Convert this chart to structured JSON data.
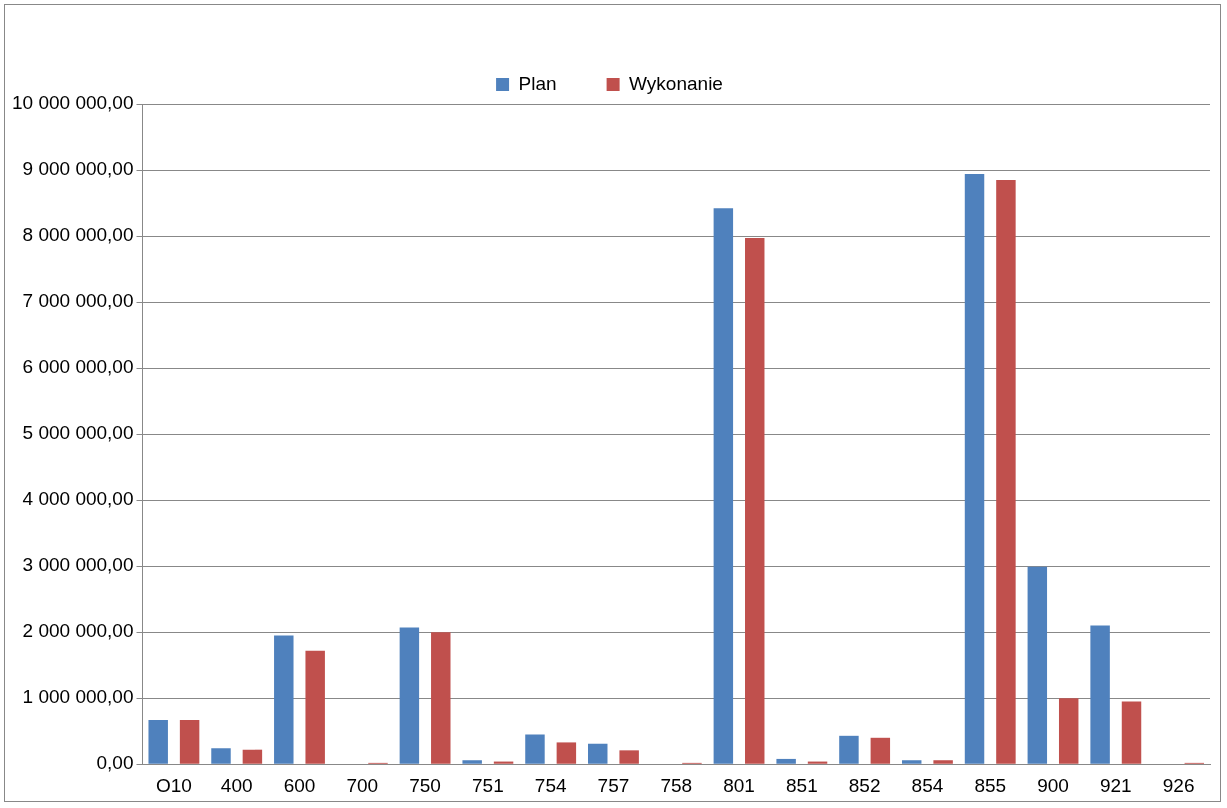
{
  "chart_data": {
    "type": "bar",
    "categories": [
      "O10",
      "400",
      "600",
      "700",
      "750",
      "751",
      "754",
      "757",
      "758",
      "801",
      "851",
      "852",
      "854",
      "855",
      "900",
      "921",
      "926"
    ],
    "series": [
      {
        "name": "Plan",
        "color": "#4f81bd",
        "values": [
          670000,
          240000,
          1950000,
          0,
          2070000,
          60000,
          450000,
          310000,
          0,
          8420000,
          80000,
          430000,
          60000,
          8940000,
          2990000,
          2100000,
          0
        ]
      },
      {
        "name": "Wykonanie",
        "color": "#c0504d",
        "values": [
          670000,
          220000,
          1720000,
          20000,
          2000000,
          40000,
          330000,
          210000,
          20000,
          7970000,
          40000,
          400000,
          60000,
          8850000,
          1000000,
          950000,
          20000
        ]
      }
    ],
    "ylim": [
      0,
      10000000
    ],
    "yticks": [
      {
        "value": 0,
        "label": "0,00"
      },
      {
        "value": 1000000,
        "label": "1 000 000,00"
      },
      {
        "value": 2000000,
        "label": "2 000 000,00"
      },
      {
        "value": 3000000,
        "label": "3 000 000,00"
      },
      {
        "value": 4000000,
        "label": "4 000 000,00"
      },
      {
        "value": 5000000,
        "label": "5 000 000,00"
      },
      {
        "value": 6000000,
        "label": "6 000 000,00"
      },
      {
        "value": 7000000,
        "label": "7 000 000,00"
      },
      {
        "value": 8000000,
        "label": "8 000 000,00"
      },
      {
        "value": 9000000,
        "label": "9 000 000,00"
      },
      {
        "value": 10000000,
        "label": "10 000 000,00"
      }
    ],
    "grid": "y",
    "legend": "top"
  }
}
